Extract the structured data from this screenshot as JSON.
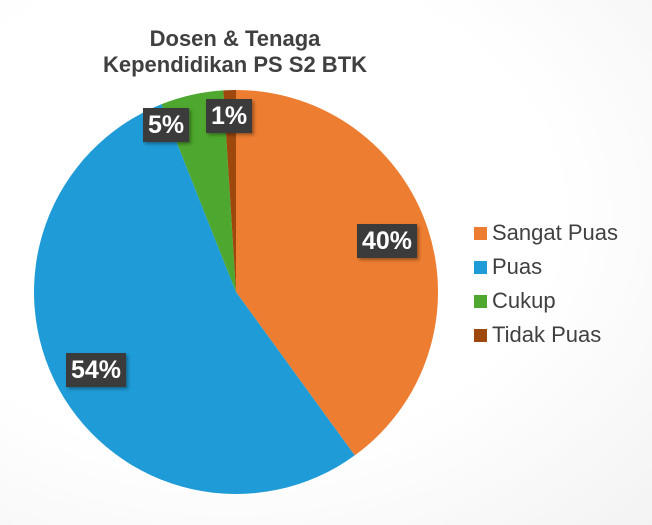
{
  "chart_data": {
    "type": "pie",
    "title": "Dosen & Tenaga Kependidikan PS S2 BTK",
    "categories": [
      "Sangat Puas",
      "Puas",
      "Cukup",
      "Tidak Puas"
    ],
    "values": [
      40,
      54,
      5,
      1
    ],
    "labels": [
      "40%",
      "54%",
      "5%",
      "1%"
    ],
    "colors": [
      "#ED7D31",
      "#1F9BD7",
      "#4EA72E",
      "#9E480E"
    ],
    "legend_position": "right"
  },
  "title_line1": "Dosen & Tenaga",
  "title_line2": "Kependidikan PS S2 BTK",
  "legend": [
    {
      "label": "Sangat Puas",
      "color": "#ED7D31"
    },
    {
      "label": "Puas",
      "color": "#1F9BD7"
    },
    {
      "label": "Cukup",
      "color": "#4EA72E"
    },
    {
      "label": "Tidak Puas",
      "color": "#9E480E"
    }
  ],
  "data_labels": [
    "40%",
    "54%",
    "5%",
    "1%"
  ]
}
